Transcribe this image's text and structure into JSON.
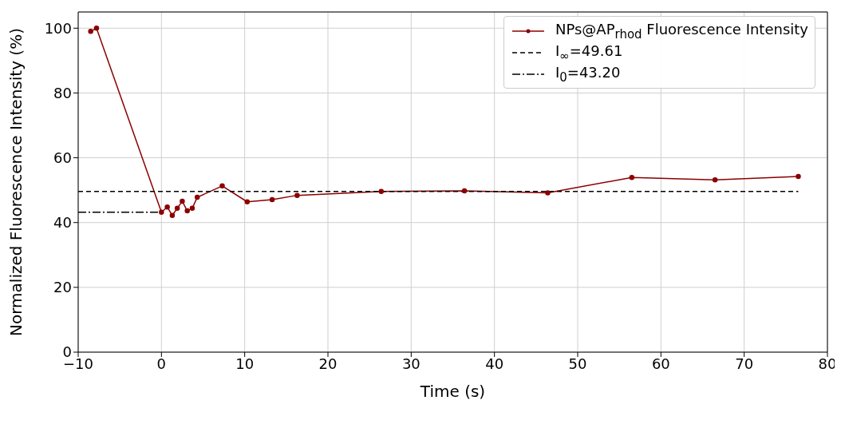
{
  "chart_data": {
    "type": "line",
    "xlabel": "Time (s)",
    "ylabel": "Normalized Fluorescence Intensity (%)",
    "xlim": [
      -10,
      80
    ],
    "xticks": [
      -10,
      0,
      10,
      20,
      30,
      40,
      50,
      60,
      70,
      80
    ],
    "ylim": [
      0,
      105
    ],
    "yticks": [
      0,
      20,
      40,
      60,
      80,
      100
    ],
    "grid": true,
    "legend": "top right",
    "series": [
      {
        "name": "NPs@AP$_{rhod}$ Fluorescence Intensity",
        "color": "#8b0000",
        "marker": "circle",
        "line_style": "solid",
        "x": [
          -8.5,
          -7.8,
          0,
          0.7,
          1.3,
          1.9,
          2.5,
          3.1,
          3.7,
          4.3,
          7.3,
          10.3,
          13.3,
          16.3,
          26.4,
          36.4,
          46.4,
          56.5,
          66.5,
          76.5
        ],
        "values": [
          99,
          100,
          43.2,
          44.8,
          42.2,
          44.4,
          46.6,
          43.6,
          44.4,
          47.8,
          51.3,
          46.4,
          47.1,
          48.4,
          49.6,
          49.8,
          49.2,
          53.9,
          53.2,
          54.2
        ]
      },
      {
        "name": "I$_{∞}$=49.61",
        "color": "#000000",
        "marker": "none",
        "line_style": "dashed",
        "x": [
          -10,
          76.5
        ],
        "values": [
          49.61,
          49.61
        ]
      },
      {
        "name": "I$_{0}$=43.20",
        "color": "#000000",
        "marker": "none",
        "line_style": "dashdot",
        "x": [
          -10,
          0
        ],
        "values": [
          43.2,
          43.2
        ]
      }
    ]
  }
}
